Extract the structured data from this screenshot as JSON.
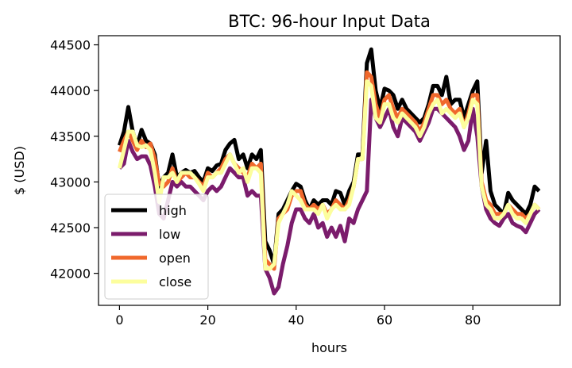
{
  "chart_data": {
    "type": "line",
    "title": "BTC: 96-hour Input Data",
    "xlabel": "hours",
    "ylabel": "$ (USD)",
    "xlim": [
      -4.75,
      99.75
    ],
    "ylim": [
      41650,
      44600
    ],
    "xticks": [
      0,
      20,
      40,
      60,
      80
    ],
    "yticks": [
      42000,
      42500,
      43000,
      43500,
      44000,
      44500
    ],
    "grid": false,
    "legend_position": "lower-left",
    "series": [
      {
        "name": "high",
        "color": "#000000",
        "values": [
          43400,
          43550,
          43820,
          43550,
          43400,
          43570,
          43450,
          43420,
          43300,
          42950,
          43050,
          43100,
          43300,
          43050,
          43100,
          43130,
          43100,
          43120,
          43050,
          43000,
          43150,
          43120,
          43180,
          43200,
          43350,
          43420,
          43460,
          43250,
          43300,
          43150,
          43300,
          43250,
          43350,
          42350,
          42250,
          42100,
          42650,
          42700,
          42800,
          42900,
          42980,
          42950,
          42800,
          42700,
          42800,
          42750,
          42800,
          42800,
          42750,
          42900,
          42880,
          42750,
          42900,
          43000,
          43300,
          43300,
          44300,
          44450,
          44000,
          43800,
          44020,
          44000,
          43950,
          43800,
          43900,
          43800,
          43750,
          43700,
          43650,
          43700,
          43850,
          44050,
          44050,
          43950,
          44150,
          43850,
          43900,
          43900,
          43700,
          43850,
          44000,
          44100,
          43100,
          43450,
          42900,
          42750,
          42700,
          42650,
          42880,
          42800,
          42750,
          42700,
          42650,
          42750,
          42950,
          42900
        ]
      },
      {
        "name": "low",
        "color": "#7b1c6c",
        "values": [
          43150,
          43200,
          43450,
          43330,
          43250,
          43280,
          43280,
          43180,
          42950,
          42650,
          42600,
          42800,
          43000,
          42950,
          43000,
          42950,
          42950,
          42900,
          42850,
          42800,
          42900,
          42950,
          42900,
          42950,
          43050,
          43150,
          43100,
          43050,
          43050,
          42850,
          42900,
          42850,
          42850,
          42050,
          41950,
          41780,
          41850,
          42100,
          42300,
          42550,
          42700,
          42700,
          42600,
          42550,
          42650,
          42500,
          42550,
          42400,
          42500,
          42400,
          42520,
          42350,
          42600,
          42550,
          42700,
          42800,
          42900,
          43900,
          43700,
          43600,
          43700,
          43800,
          43600,
          43500,
          43700,
          43650,
          43600,
          43550,
          43450,
          43550,
          43650,
          43800,
          43800,
          43750,
          43700,
          43650,
          43600,
          43500,
          43350,
          43450,
          43800,
          43500,
          42950,
          42700,
          42600,
          42550,
          42520,
          42600,
          42650,
          42550,
          42520,
          42500,
          42450,
          42550,
          42650,
          42700
        ]
      },
      {
        "name": "open",
        "color": "#f0682c",
        "values": [
          43330,
          43450,
          43550,
          43450,
          43350,
          43450,
          43380,
          43420,
          43250,
          42980,
          42950,
          43000,
          43150,
          43000,
          43050,
          43100,
          43050,
          43050,
          43000,
          42950,
          43100,
          43050,
          43100,
          43150,
          43250,
          43300,
          43200,
          43150,
          43100,
          43050,
          43200,
          43150,
          43200,
          42150,
          42100,
          42050,
          42600,
          42650,
          42700,
          42850,
          42900,
          42900,
          42750,
          42700,
          42750,
          42700,
          42750,
          42650,
          42700,
          42800,
          42750,
          42700,
          42800,
          42950,
          43250,
          43250,
          44200,
          44150,
          43850,
          43700,
          43900,
          43950,
          43800,
          43700,
          43800,
          43750,
          43700,
          43650,
          43550,
          43650,
          43800,
          43950,
          43950,
          43850,
          43900,
          43800,
          43750,
          43800,
          43600,
          43750,
          43950,
          43950,
          43000,
          42800,
          42750,
          42650,
          42650,
          42650,
          42750,
          42700,
          42650,
          42650,
          42600,
          42650,
          42750,
          42700
        ]
      },
      {
        "name": "close",
        "color": "#fcfe9d",
        "values": [
          43150,
          43350,
          43550,
          43550,
          43400,
          43380,
          43400,
          43350,
          43100,
          42780,
          43050,
          43050,
          43100,
          43000,
          43100,
          43100,
          43100,
          43050,
          42980,
          42900,
          43050,
          43050,
          43100,
          43100,
          43200,
          43300,
          43200,
          43100,
          43150,
          43000,
          43150,
          43150,
          43100,
          42050,
          42050,
          42100,
          42550,
          42650,
          42750,
          42900,
          42850,
          42800,
          42700,
          42700,
          42700,
          42650,
          42750,
          42600,
          42700,
          42750,
          42700,
          42700,
          42750,
          42950,
          43250,
          43250,
          44100,
          44050,
          43700,
          43650,
          43850,
          43850,
          43700,
          43650,
          43750,
          43700,
          43650,
          43600,
          43500,
          43600,
          43750,
          43850,
          43900,
          43750,
          43800,
          43750,
          43700,
          43750,
          43600,
          43700,
          43900,
          43850,
          42950,
          42750,
          42700,
          42600,
          42600,
          42650,
          42750,
          42650,
          42600,
          42600,
          42550,
          42650,
          42750,
          42700
        ]
      }
    ]
  }
}
